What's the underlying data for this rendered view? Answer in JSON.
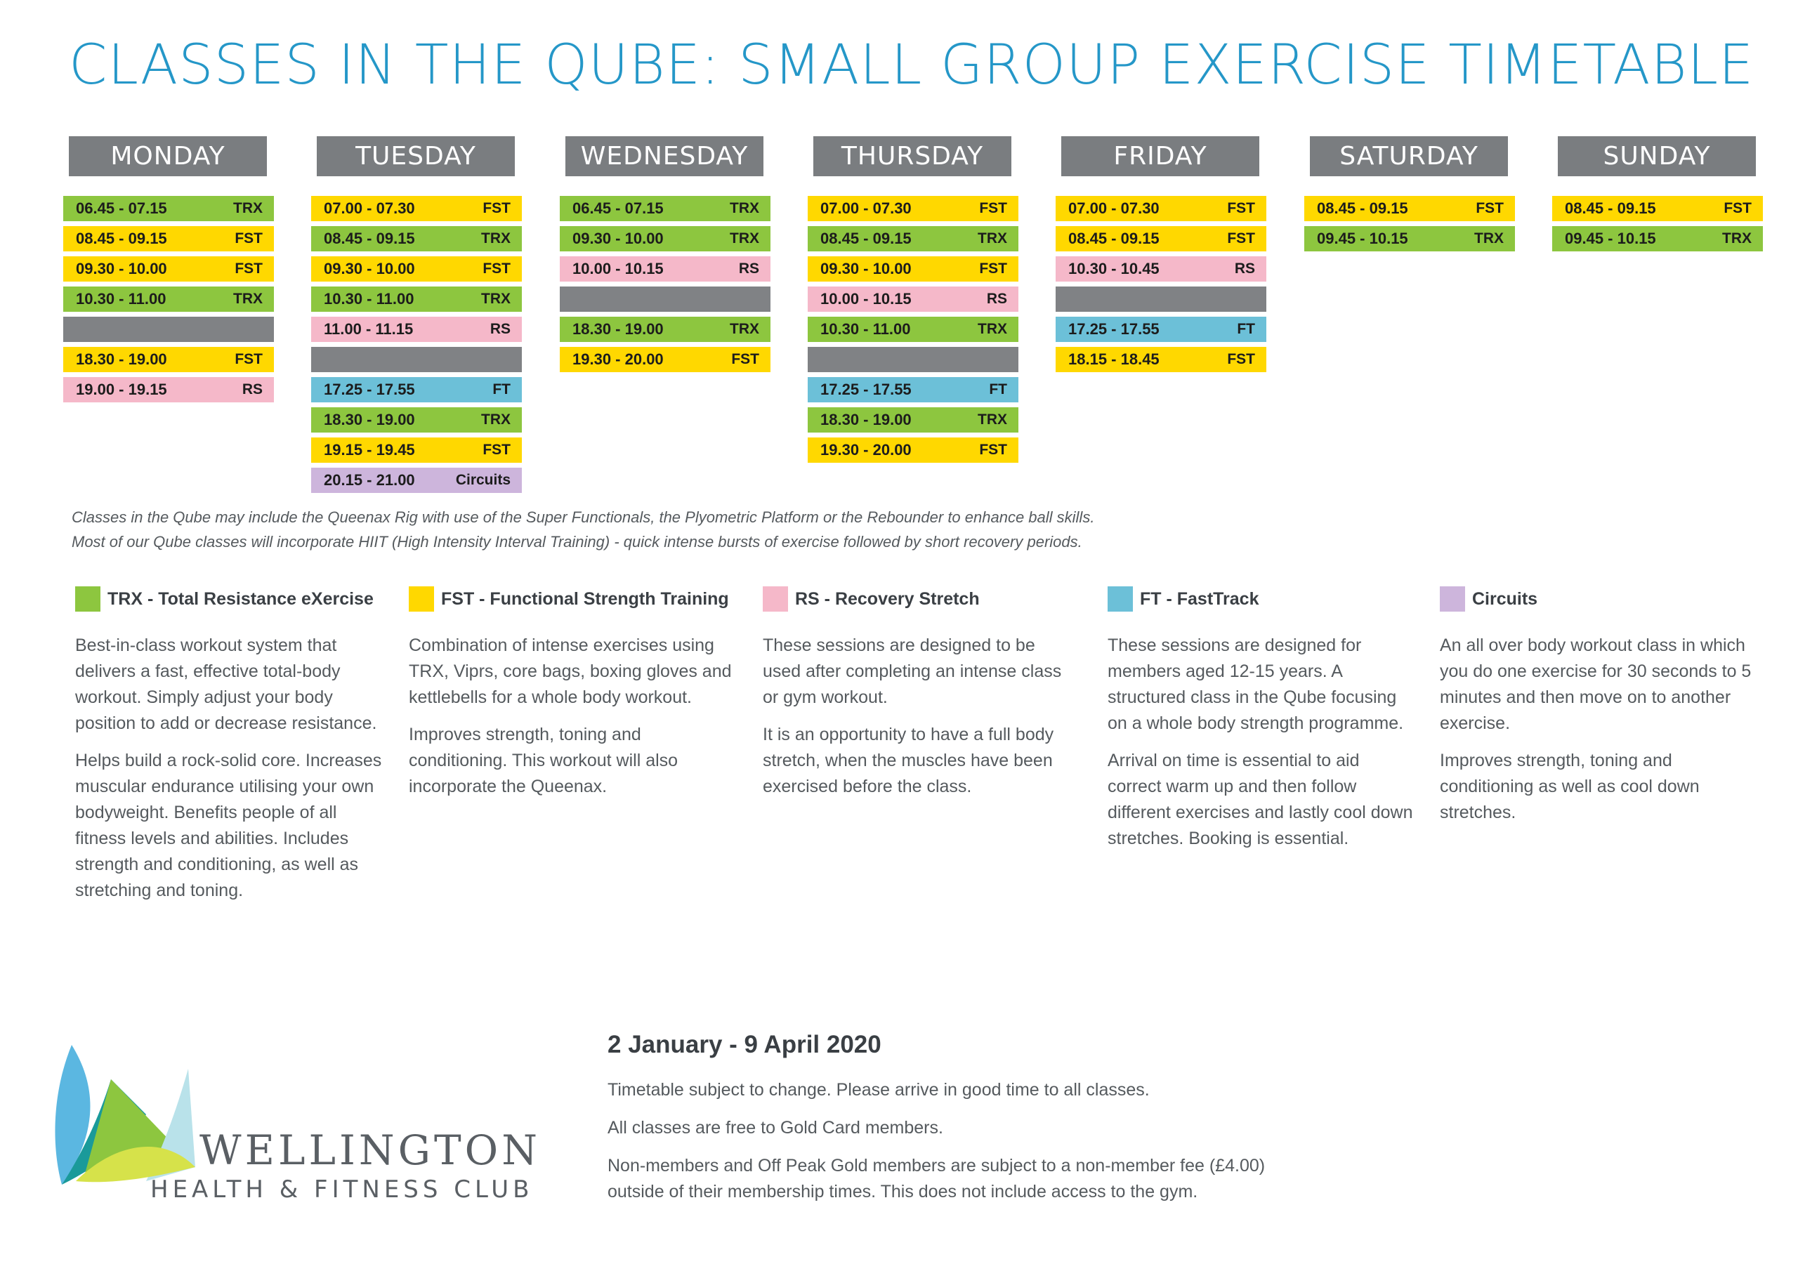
{
  "title": "CLASSES IN THE QUBE: SMALL GROUP EXERCISE TIMETABLE",
  "colors": {
    "title": "#2597c8",
    "header_bg": "#7a7d80",
    "TRX": "#8dc63f",
    "FST": "#ffd800",
    "RS": "#f5b8c9",
    "FT": "#6cc0d8",
    "Circuits": "#cdb5dc",
    "gap": "#808285"
  },
  "days": [
    {
      "name": "MONDAY",
      "slots": [
        {
          "time": "06.45 - 07.15",
          "code": "TRX"
        },
        {
          "time": "08.45 - 09.15",
          "code": "FST"
        },
        {
          "time": "09.30 - 10.00",
          "code": "FST"
        },
        {
          "time": "10.30 - 11.00",
          "code": "TRX"
        },
        {
          "time": "",
          "code": "",
          "gap": true
        },
        {
          "time": "18.30 - 19.00",
          "code": "FST"
        },
        {
          "time": "19.00 - 19.15",
          "code": "RS"
        }
      ]
    },
    {
      "name": "TUESDAY",
      "slots": [
        {
          "time": "07.00 - 07.30",
          "code": "FST"
        },
        {
          "time": "08.45 - 09.15",
          "code": "TRX"
        },
        {
          "time": "09.30 - 10.00",
          "code": "FST"
        },
        {
          "time": "10.30 - 11.00",
          "code": "TRX"
        },
        {
          "time": "11.00 - 11.15",
          "code": "RS"
        },
        {
          "time": "",
          "code": "",
          "gap": true
        },
        {
          "time": "17.25 - 17.55",
          "code": "FT"
        },
        {
          "time": "18.30 - 19.00",
          "code": "TRX"
        },
        {
          "time": "19.15 - 19.45",
          "code": "FST"
        },
        {
          "time": "20.15 - 21.00",
          "code": "Circuits"
        }
      ]
    },
    {
      "name": "WEDNESDAY",
      "slots": [
        {
          "time": "06.45 - 07.15",
          "code": "TRX"
        },
        {
          "time": "09.30 - 10.00",
          "code": "TRX"
        },
        {
          "time": "10.00 - 10.15",
          "code": "RS"
        },
        {
          "time": "",
          "code": "",
          "gap": true
        },
        {
          "time": "18.30 - 19.00",
          "code": "TRX"
        },
        {
          "time": "19.30 - 20.00",
          "code": "FST"
        }
      ]
    },
    {
      "name": "THURSDAY",
      "slots": [
        {
          "time": "07.00 - 07.30",
          "code": "FST"
        },
        {
          "time": "08.45 - 09.15",
          "code": "TRX"
        },
        {
          "time": "09.30 - 10.00",
          "code": "FST"
        },
        {
          "time": "10.00 - 10.15",
          "code": "RS"
        },
        {
          "time": "10.30 - 11.00",
          "code": "TRX"
        },
        {
          "time": "",
          "code": "",
          "gap": true
        },
        {
          "time": "17.25 - 17.55",
          "code": "FT"
        },
        {
          "time": "18.30 - 19.00",
          "code": "TRX"
        },
        {
          "time": "19.30 - 20.00",
          "code": "FST"
        }
      ]
    },
    {
      "name": "FRIDAY",
      "slots": [
        {
          "time": "07.00 - 07.30",
          "code": "FST"
        },
        {
          "time": "08.45 - 09.15",
          "code": "FST"
        },
        {
          "time": "10.30 - 10.45",
          "code": "RS"
        },
        {
          "time": "",
          "code": "",
          "gap": true
        },
        {
          "time": "17.25 - 17.55",
          "code": "FT"
        },
        {
          "time": "18.15 - 18.45",
          "code": "FST"
        }
      ]
    },
    {
      "name": "SATURDAY",
      "slots": [
        {
          "time": "08.45 - 09.15",
          "code": "FST"
        },
        {
          "time": "09.45 - 10.15",
          "code": "TRX"
        }
      ]
    },
    {
      "name": "SUNDAY",
      "slots": [
        {
          "time": "08.45 - 09.15",
          "code": "FST"
        },
        {
          "time": "09.45 - 10.15",
          "code": "TRX"
        }
      ]
    }
  ],
  "notes": [
    "Classes in the Qube may include the Queenax Rig with use of the Super Functionals, the Plyometric Platform or the Rebounder to enhance ball skills.",
    "Most of our Qube classes will incorporate HIIT (High Intensity Interval Training) - quick intense bursts of exercise followed by short recovery periods."
  ],
  "legend": [
    {
      "code": "TRX",
      "title": "TRX - Total Resistance eXercise",
      "paragraphs": [
        "Best-in-class workout system that delivers a fast, effective total-body workout. Simply adjust your body position to add or decrease resistance.",
        "Helps build a rock-solid core. Increases muscular endurance utilising your own bodyweight. Benefits people of all fitness levels and abilities. Includes strength and conditioning, as well as stretching and toning."
      ]
    },
    {
      "code": "FST",
      "title": "FST - Functional Strength Training",
      "paragraphs": [
        "Combination of intense exercises using TRX, Viprs, core bags, boxing gloves and kettlebells for a whole body workout.",
        "Improves strength, toning and conditioning. This workout will also incorporate the Queenax."
      ]
    },
    {
      "code": "RS",
      "title": "RS - Recovery Stretch",
      "paragraphs": [
        "These sessions are designed to be used after completing an intense class or gym workout.",
        "It is an opportunity to have a full body stretch, when the muscles have been exercised before the class."
      ]
    },
    {
      "code": "FT",
      "title": "FT - FastTrack",
      "paragraphs": [
        "These sessions are designed for members aged 12-15 years. A structured class in the Qube focusing on a whole body strength programme.",
        "Arrival on time is essential to aid correct warm up and then follow different exercises and lastly cool down stretches. Booking is essential."
      ]
    },
    {
      "code": "Circuits",
      "title": "Circuits",
      "paragraphs": [
        "An all over body workout class in which you do one exercise for 30 seconds to 5 minutes and then move on to another exercise.",
        "Improves strength, toning and conditioning as well as cool down stretches."
      ]
    }
  ],
  "logo": {
    "line1": "WELLINGTON",
    "line2": "HEALTH & FITNESS CLUB"
  },
  "info": {
    "date_range": "2 January - 9 April 2020",
    "lines": [
      "Timetable subject to change. Please arrive in good time to all classes.",
      "All classes are free to Gold Card members.",
      "Non-members and Off Peak Gold members are subject to a non-member fee (£4.00) outside of their membership times. This does not include access to the gym."
    ]
  }
}
